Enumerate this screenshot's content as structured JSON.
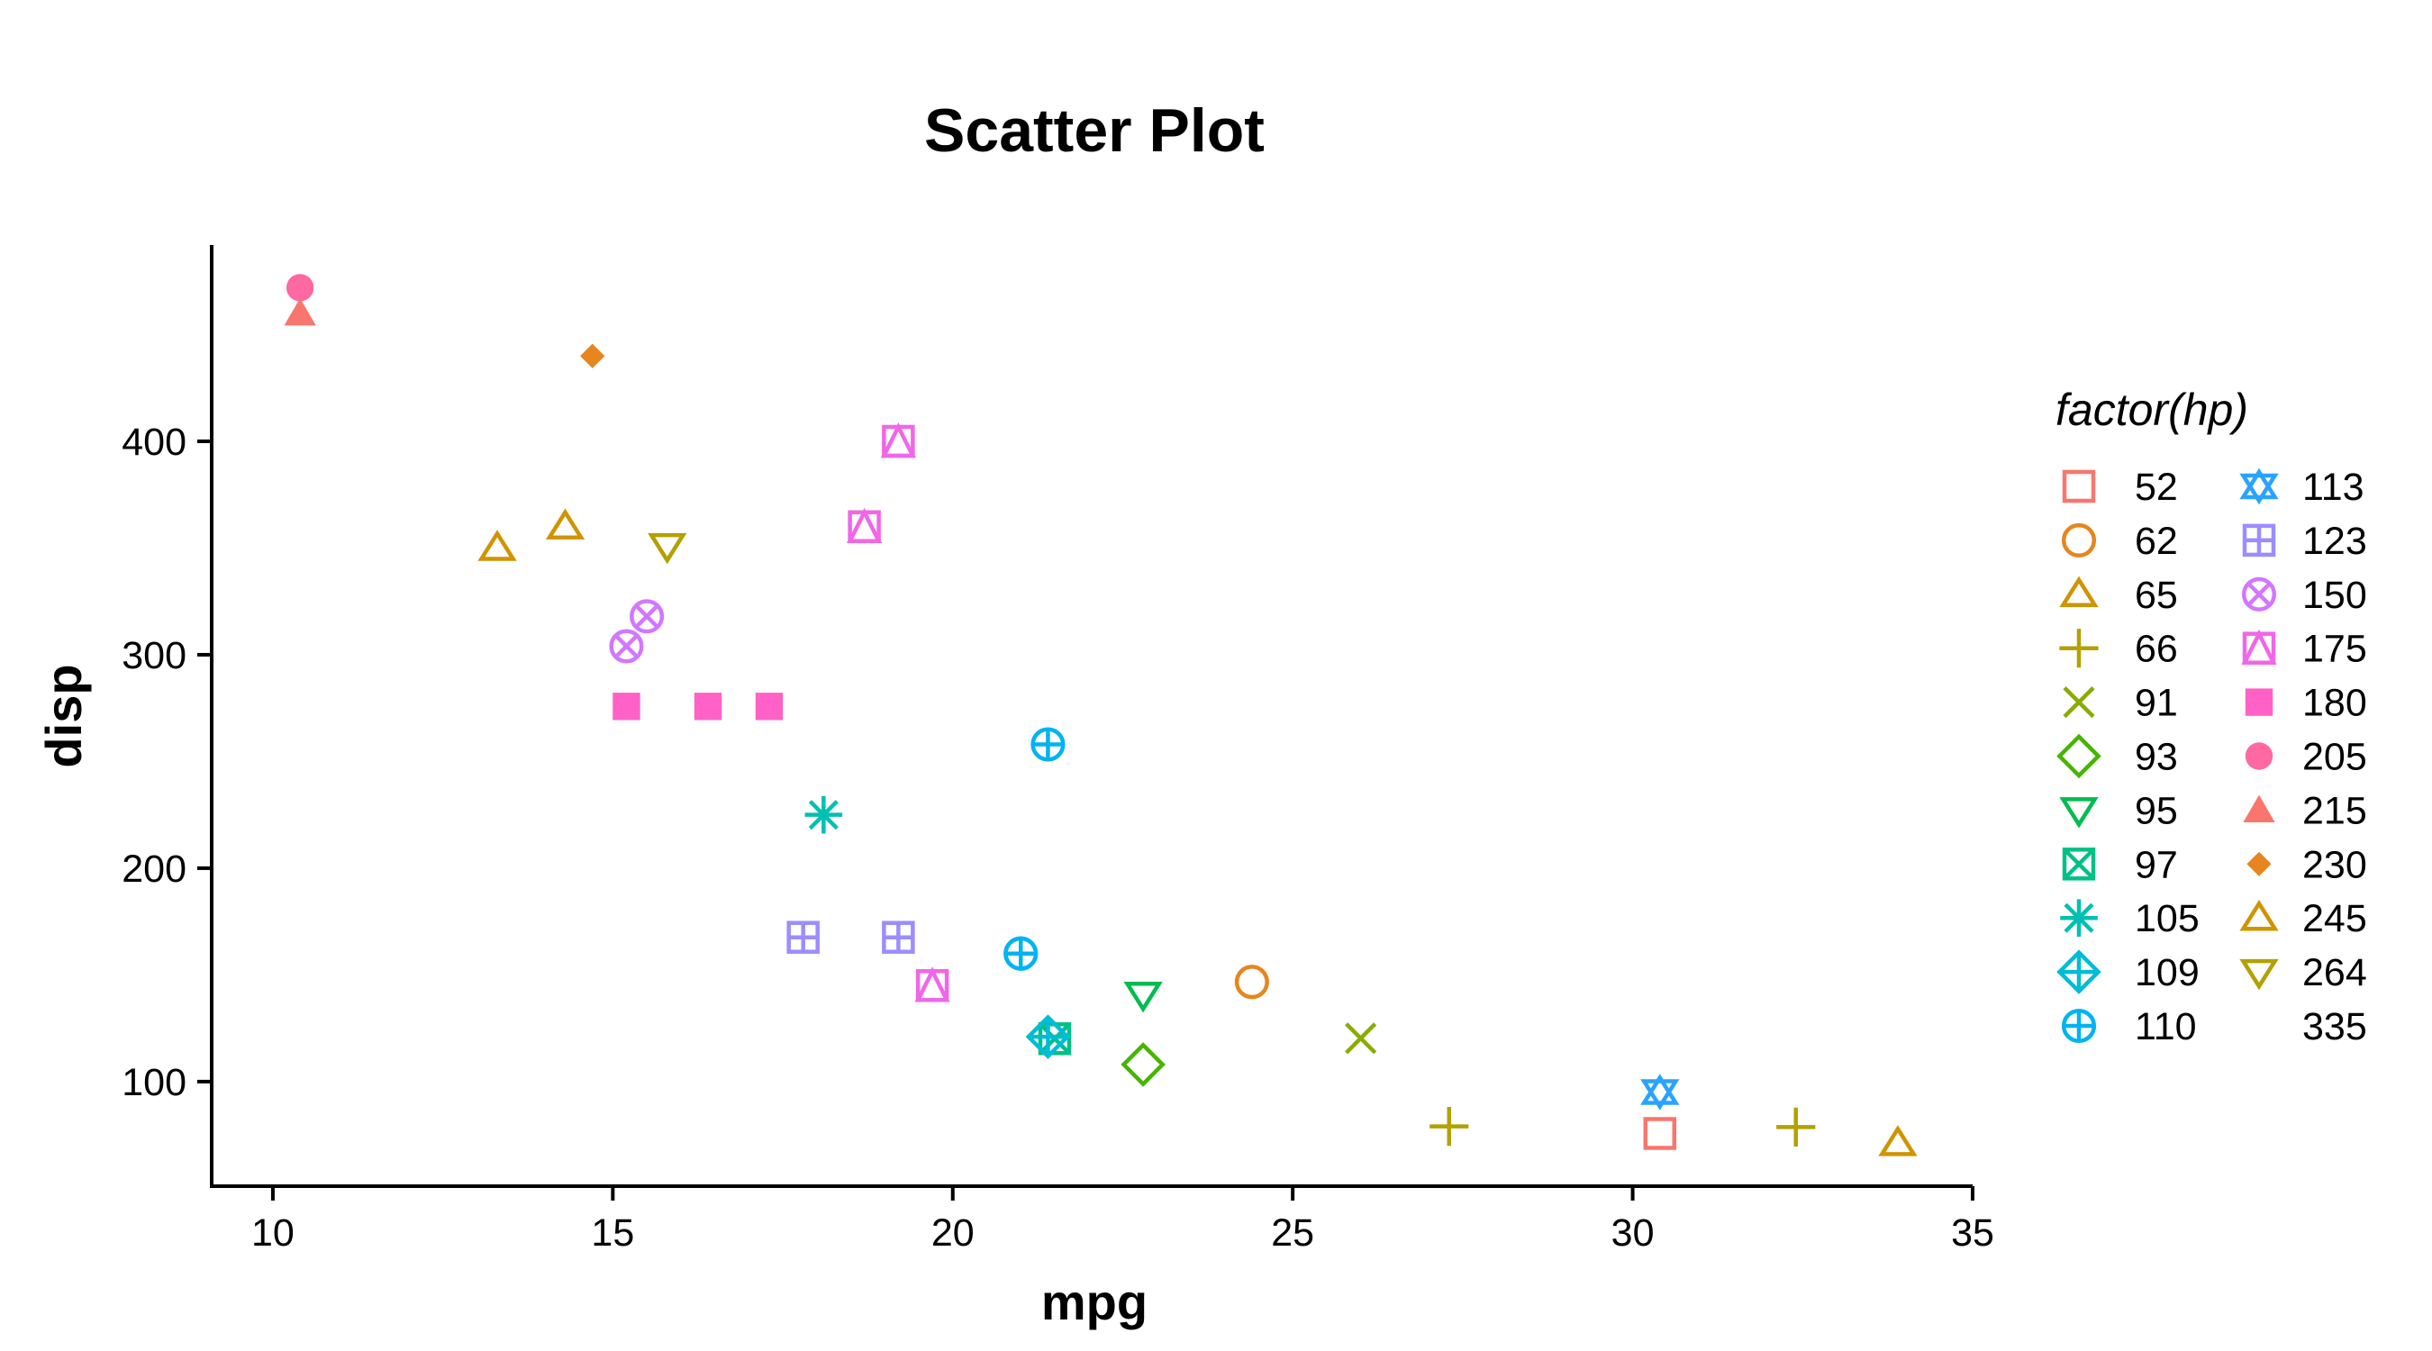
{
  "chart_data": {
    "type": "scatter",
    "title": "Scatter Plot",
    "xlabel": "mpg",
    "ylabel": "disp",
    "xlim": [
      9.1,
      35.0
    ],
    "ylim": [
      51,
      492
    ],
    "xticks": [
      10,
      15,
      20,
      25,
      30,
      35
    ],
    "yticks": [
      100,
      200,
      300,
      400
    ],
    "grid": false,
    "legend": {
      "title": "factor(hp)",
      "placement": "right",
      "columns": 2,
      "entries": [
        {
          "label": "52",
          "shape": "square-open",
          "color": "#F8766D"
        },
        {
          "label": "62",
          "shape": "circle-open",
          "color": "#E7851E"
        },
        {
          "label": "65",
          "shape": "triangle-open",
          "color": "#D09400"
        },
        {
          "label": "66",
          "shape": "plus",
          "color": "#B2A100"
        },
        {
          "label": "91",
          "shape": "cross",
          "color": "#89AC00"
        },
        {
          "label": "93",
          "shape": "diamond-open",
          "color": "#45B500"
        },
        {
          "label": "95",
          "shape": "triangle-down-open",
          "color": "#00BC51"
        },
        {
          "label": "97",
          "shape": "square-cross",
          "color": "#00C087"
        },
        {
          "label": "105",
          "shape": "asterisk",
          "color": "#00C0B2"
        },
        {
          "label": "109",
          "shape": "diamond-plus",
          "color": "#00BCD6"
        },
        {
          "label": "110",
          "shape": "circle-plus",
          "color": "#00B3F2"
        },
        {
          "label": "113",
          "shape": "star-of-david",
          "color": "#29A3FF"
        },
        {
          "label": "123",
          "shape": "square-plus",
          "color": "#9C8DFF"
        },
        {
          "label": "150",
          "shape": "circle-cross",
          "color": "#D277FF"
        },
        {
          "label": "175",
          "shape": "square-triangle",
          "color": "#F166E8"
        },
        {
          "label": "180",
          "shape": "square-filled",
          "color": "#FF61C7"
        },
        {
          "label": "205",
          "shape": "circle-filled",
          "color": "#FF68A1"
        },
        {
          "label": "215",
          "shape": "triangle-filled",
          "color": "#F8766D"
        },
        {
          "label": "230",
          "shape": "diamond-filled",
          "color": "#E7851E"
        },
        {
          "label": "245",
          "shape": "triangle-open",
          "color": "#D09400"
        },
        {
          "label": "264",
          "shape": "triangle-down-open",
          "color": "#B2A100"
        },
        {
          "label": "335",
          "shape": "none",
          "color": "#89AC00"
        }
      ]
    },
    "points": [
      {
        "x": 21.0,
        "y": 160.0,
        "hp": "110"
      },
      {
        "x": 21.0,
        "y": 160.0,
        "hp": "110"
      },
      {
        "x": 22.8,
        "y": 108.0,
        "hp": "93"
      },
      {
        "x": 21.4,
        "y": 258.0,
        "hp": "110"
      },
      {
        "x": 18.7,
        "y": 360.0,
        "hp": "175"
      },
      {
        "x": 18.1,
        "y": 225.0,
        "hp": "105"
      },
      {
        "x": 14.3,
        "y": 360.0,
        "hp": "245"
      },
      {
        "x": 24.4,
        "y": 146.7,
        "hp": "62"
      },
      {
        "x": 22.8,
        "y": 140.8,
        "hp": "95"
      },
      {
        "x": 19.2,
        "y": 167.6,
        "hp": "123"
      },
      {
        "x": 17.8,
        "y": 167.6,
        "hp": "123"
      },
      {
        "x": 16.4,
        "y": 275.8,
        "hp": "180"
      },
      {
        "x": 17.3,
        "y": 275.8,
        "hp": "180"
      },
      {
        "x": 15.2,
        "y": 275.8,
        "hp": "180"
      },
      {
        "x": 10.4,
        "y": 472.0,
        "hp": "205"
      },
      {
        "x": 10.4,
        "y": 460.0,
        "hp": "215"
      },
      {
        "x": 14.7,
        "y": 440.0,
        "hp": "230"
      },
      {
        "x": 32.4,
        "y": 78.7,
        "hp": "66"
      },
      {
        "x": 30.4,
        "y": 75.7,
        "hp": "52"
      },
      {
        "x": 33.9,
        "y": 71.1,
        "hp": "65"
      },
      {
        "x": 21.5,
        "y": 120.1,
        "hp": "97"
      },
      {
        "x": 15.5,
        "y": 318.0,
        "hp": "150"
      },
      {
        "x": 15.2,
        "y": 304.0,
        "hp": "150"
      },
      {
        "x": 13.3,
        "y": 350.0,
        "hp": "245"
      },
      {
        "x": 19.2,
        "y": 400.0,
        "hp": "175"
      },
      {
        "x": 27.3,
        "y": 79.0,
        "hp": "66"
      },
      {
        "x": 26.0,
        "y": 120.3,
        "hp": "91"
      },
      {
        "x": 30.4,
        "y": 95.1,
        "hp": "113"
      },
      {
        "x": 15.8,
        "y": 351.0,
        "hp": "264"
      },
      {
        "x": 19.7,
        "y": 145.0,
        "hp": "175"
      },
      {
        "x": 15.0,
        "y": 301.0,
        "hp": "335"
      },
      {
        "x": 21.4,
        "y": 121.0,
        "hp": "109"
      }
    ]
  }
}
